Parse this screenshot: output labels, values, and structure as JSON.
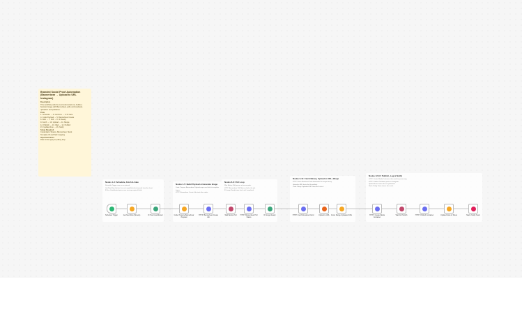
{
  "sticky": {
    "title": "Branded Social Proof Automation (Bannerbear → Upload to URL Instagram)",
    "lines": [
      "Description",
      "This workflow pulls the next testimonial row, builds a branded image with Bannerbear, polls until rendered, uploads it and publishes.",
      "Flow",
      "1. Schedule → 2. Get Row → 3. IF Gate",
      "4. Code Payload → 5. Bannerbear Create",
      "6. Wait → 7. Poll → 8. IF Ready",
      "9. Fetch → 10. Upload → 11. Merge",
      "12. Publish → 13. Wait → 14. Publish",
      "15. Update Row → 16. Notify",
      "Setup Required",
      "Credentials: Sheets, Bannerbear, Slack",
      "Template ID and field mapping",
      "Important Notes",
      "Rate limits apply to polling loop"
    ]
  },
  "sections": [
    {
      "title": "Nodes 1-3: Schedule, Fetch & Gate",
      "lines": [
        "Schedule Trigger runs on an interval.",
        "Get Next Row fetches the next unpublished testimonial from the sheet.",
        "IF Has Unattributed gates rows missing required fields."
      ]
    },
    {
      "title": "Nodes 4-5: Build Payload & Generate Image",
      "lines": [
        "Code: Prepare Bannerbear Payload maps row fields to template layers.",
        "HTTP: Bannerbear Create Job starts the render."
      ]
    },
    {
      "title": "Nodes 6-8: Poll Loop",
      "lines": [
        "Wait Before Poll pauses a few seconds.",
        "HTTP: Bannerbear Poll Status checks the job.",
        "IF Image Ready loops back until completed."
      ]
    },
    {
      "title": "Nodes 9-11: Fetch Binary, Upload to URL, Merge",
      "lines": [
        "HTTP: Fetch Rendered Card downloads the image binary.",
        "Upload to URL hosts the file publicly.",
        "Code: Merge Uploaded URL attaches the link."
      ]
    },
    {
      "title": "Nodes 12-16: Publish, Log & Notify",
      "lines": [
        "HTTP: Create Media Container, then wait for processing.",
        "HTTP: Publish Container posts to Instagram.",
        "Update Rows marks the row published.",
        "Slack: Notify Team shares the result."
      ]
    }
  ],
  "nodes": [
    {
      "label": "Schedule Trigger",
      "icon": "clock-icon",
      "color": "#2bb673"
    },
    {
      "label": "Get Next Row (Sheets)",
      "icon": "airtable-icon",
      "color": "#f5a623"
    },
    {
      "label": "IF Has Unattributed",
      "icon": "if-icon",
      "color": "#3aa57a"
    },
    {
      "label": "Code: Prepare Bannerbear Payload",
      "icon": "code-icon",
      "color": "#f5a623"
    },
    {
      "label": "HTTP: Bannerbear Create Job",
      "icon": "globe-icon",
      "color": "#6a6ef0"
    },
    {
      "label": "Wait Before Poll",
      "icon": "wait-icon",
      "color": "#c0466a"
    },
    {
      "label": "HTTP: Bannerbear Poll Status",
      "icon": "globe-icon",
      "color": "#6a6ef0"
    },
    {
      "label": "IF Image Ready",
      "icon": "if-icon",
      "color": "#3aa57a"
    },
    {
      "label": "HTTP: Fetch Rendered Card",
      "icon": "globe-icon",
      "color": "#6a6ef0"
    },
    {
      "label": "Upload to URL",
      "icon": "upload-icon",
      "color": "#e8641b"
    },
    {
      "label": "Code: Merge Uploaded URL",
      "icon": "code-icon",
      "color": "#f5a623"
    },
    {
      "label": "HTTP: Create Media Container",
      "icon": "globe-icon",
      "color": "#6a6ef0"
    },
    {
      "label": "Wait for Publish",
      "icon": "wait-icon",
      "color": "#c0466a"
    },
    {
      "label": "HTTP: Publish Container",
      "icon": "globe-icon",
      "color": "#6a6ef0"
    },
    {
      "label": "Update Rows in Sheet",
      "icon": "airtable-icon",
      "color": "#f5a623"
    },
    {
      "label": "Slack: Notify Team",
      "icon": "slack-icon",
      "color": "#e01e5a"
    }
  ]
}
